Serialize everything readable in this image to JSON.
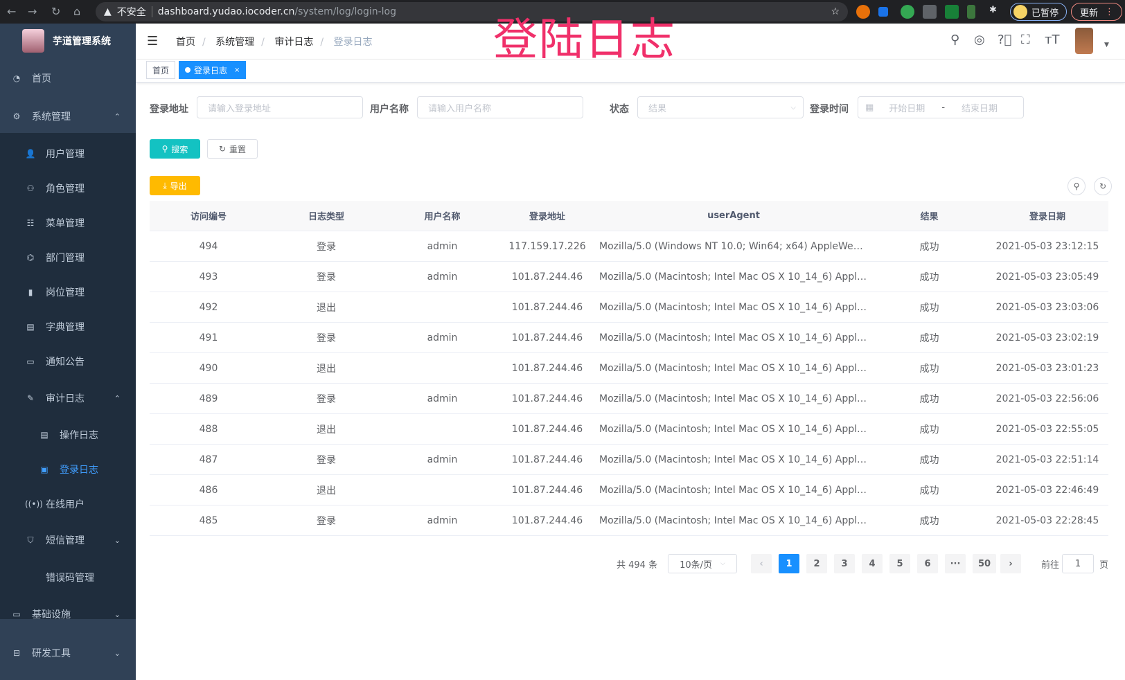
{
  "browser": {
    "security": "不安全",
    "url_host": "dashboard.yudao.iocoder.cn",
    "url_path": "/system/log/login-log",
    "paused_label": "已暂停",
    "update_label": "更新"
  },
  "overlay_title": "登陆日志",
  "sidebar": {
    "title": "芋道管理系统",
    "items": [
      {
        "label": "首页",
        "icon": "dashboard-icon"
      },
      {
        "label": "系统管理",
        "icon": "gear-icon"
      },
      {
        "label": "用户管理",
        "icon": "user-icon"
      },
      {
        "label": "角色管理",
        "icon": "peoples-icon"
      },
      {
        "label": "菜单管理",
        "icon": "tree-table-icon"
      },
      {
        "label": "部门管理",
        "icon": "tree-icon"
      },
      {
        "label": "岗位管理",
        "icon": "post-icon"
      },
      {
        "label": "字典管理",
        "icon": "dict-icon"
      },
      {
        "label": "通知公告",
        "icon": "message-icon"
      },
      {
        "label": "审计日志",
        "icon": "log-icon"
      },
      {
        "label": "操作日志",
        "icon": "form-icon"
      },
      {
        "label": "登录日志",
        "icon": "logininfor-icon"
      },
      {
        "label": "在线用户",
        "icon": "online-icon"
      },
      {
        "label": "短信管理",
        "icon": "shield-icon"
      },
      {
        "label": "错误码管理",
        "icon": "code-icon"
      },
      {
        "label": "基础设施",
        "icon": "monitor-icon"
      },
      {
        "label": "研发工具",
        "icon": "tool-icon"
      }
    ]
  },
  "breadcrumb": [
    "首页",
    "系统管理",
    "审计日志",
    "登录日志"
  ],
  "tags": [
    {
      "label": "首页"
    },
    {
      "label": "登录日志",
      "close": "×"
    }
  ],
  "filters": {
    "ip": {
      "label": "登录地址",
      "placeholder": "请输入登录地址"
    },
    "username": {
      "label": "用户名称",
      "placeholder": "请输入用户名称"
    },
    "status": {
      "label": "状态",
      "placeholder": "结果"
    },
    "time": {
      "label": "登录时间",
      "start": "开始日期",
      "sep": "-",
      "end": "结束日期"
    }
  },
  "buttons": {
    "search": "搜索",
    "reset": "重置",
    "export": "导出"
  },
  "colors": {
    "primary": "#1890ff",
    "search": "#13c2c2",
    "export": "#ffba00",
    "sidebar": "#304156",
    "overlay": "#f0306a"
  },
  "table": {
    "columns": [
      "访问编号",
      "日志类型",
      "用户名称",
      "登录地址",
      "userAgent",
      "结果",
      "登录日期"
    ],
    "rows": [
      [
        "494",
        "登录",
        "admin",
        "117.159.17.226",
        "Mozilla/5.0 (Windows NT 10.0; Win64; x64) AppleWebKit...",
        "成功",
        "2021-05-03 23:12:15"
      ],
      [
        "493",
        "登录",
        "admin",
        "101.87.244.46",
        "Mozilla/5.0 (Macintosh; Intel Mac OS X 10_14_6) AppleWe...",
        "成功",
        "2021-05-03 23:05:49"
      ],
      [
        "492",
        "退出",
        "",
        "101.87.244.46",
        "Mozilla/5.0 (Macintosh; Intel Mac OS X 10_14_6) AppleWe...",
        "成功",
        "2021-05-03 23:03:06"
      ],
      [
        "491",
        "登录",
        "admin",
        "101.87.244.46",
        "Mozilla/5.0 (Macintosh; Intel Mac OS X 10_14_6) AppleWe...",
        "成功",
        "2021-05-03 23:02:19"
      ],
      [
        "490",
        "退出",
        "",
        "101.87.244.46",
        "Mozilla/5.0 (Macintosh; Intel Mac OS X 10_14_6) AppleWe...",
        "成功",
        "2021-05-03 23:01:23"
      ],
      [
        "489",
        "登录",
        "admin",
        "101.87.244.46",
        "Mozilla/5.0 (Macintosh; Intel Mac OS X 10_14_6) AppleWe...",
        "成功",
        "2021-05-03 22:56:06"
      ],
      [
        "488",
        "退出",
        "",
        "101.87.244.46",
        "Mozilla/5.0 (Macintosh; Intel Mac OS X 10_14_6) AppleWe...",
        "成功",
        "2021-05-03 22:55:05"
      ],
      [
        "487",
        "登录",
        "admin",
        "101.87.244.46",
        "Mozilla/5.0 (Macintosh; Intel Mac OS X 10_14_6) AppleWe...",
        "成功",
        "2021-05-03 22:51:14"
      ],
      [
        "486",
        "退出",
        "",
        "101.87.244.46",
        "Mozilla/5.0 (Macintosh; Intel Mac OS X 10_14_6) AppleWe...",
        "成功",
        "2021-05-03 22:46:49"
      ],
      [
        "485",
        "登录",
        "admin",
        "101.87.244.46",
        "Mozilla/5.0 (Macintosh; Intel Mac OS X 10_14_6) AppleWe...",
        "成功",
        "2021-05-03 22:28:45"
      ]
    ]
  },
  "pagination": {
    "total": "共 494 条",
    "page_size": "10条/页",
    "pages": [
      "1",
      "2",
      "3",
      "4",
      "5",
      "6",
      "···",
      "50"
    ],
    "current": "1",
    "goto_label": "前往",
    "goto_value": "1",
    "goto_suffix": "页"
  }
}
